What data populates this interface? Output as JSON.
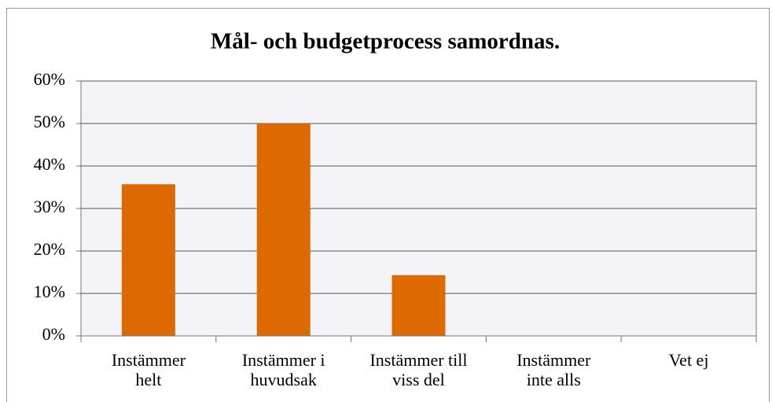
{
  "chart_data": {
    "type": "bar",
    "title": "Mål- och budgetprocess samordnas.",
    "categories": [
      "Instämmer\nhelt",
      "Instämmer i\nhuvudsak",
      "Instämmer till\nviss del",
      "Instämmer\ninte alls",
      "Vet ej"
    ],
    "values": [
      35.7,
      50,
      14.3,
      0,
      0
    ],
    "color": "#dd6a00",
    "ylim": [
      0,
      60
    ],
    "yticks": [
      {
        "value": 0,
        "label": "0%"
      },
      {
        "value": 10,
        "label": "10%"
      },
      {
        "value": 20,
        "label": "20%"
      },
      {
        "value": 30,
        "label": "30%"
      },
      {
        "value": 40,
        "label": "40%"
      },
      {
        "value": 50,
        "label": "50%"
      },
      {
        "value": 60,
        "label": "60%"
      }
    ],
    "grid": true
  }
}
